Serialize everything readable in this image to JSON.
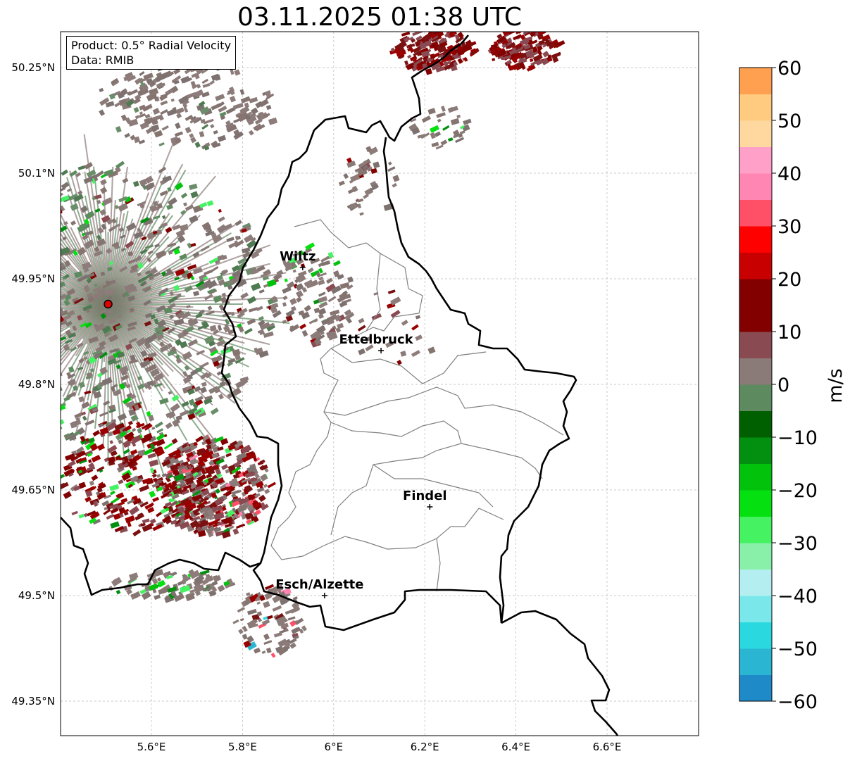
{
  "title": "03.11.2025 01:38 UTC",
  "info": {
    "product": "Product: 0.5° Radial Velocity",
    "data": "Data: RMIB"
  },
  "map": {
    "lon_range": [
      5.4,
      6.8
    ],
    "lat_range": [
      49.3,
      50.3
    ],
    "lon_ticks": [
      {
        "value": 5.6,
        "label": "5.6°E"
      },
      {
        "value": 5.8,
        "label": "5.8°E"
      },
      {
        "value": 6.0,
        "label": "6°E"
      },
      {
        "value": 6.2,
        "label": "6.2°E"
      },
      {
        "value": 6.4,
        "label": "6.4°E"
      },
      {
        "value": 6.6,
        "label": "6.6°E"
      }
    ],
    "lat_ticks": [
      {
        "value": 49.35,
        "label": "49.35°N"
      },
      {
        "value": 49.5,
        "label": "49.5°N"
      },
      {
        "value": 49.65,
        "label": "49.65°N"
      },
      {
        "value": 49.8,
        "label": "49.8°N"
      },
      {
        "value": 49.95,
        "label": "49.95°N"
      },
      {
        "value": 50.1,
        "label": "50.1°N"
      },
      {
        "value": 50.25,
        "label": "50.25°N"
      }
    ],
    "radar_site": {
      "lon": 5.505,
      "lat": 49.914
    },
    "cities": [
      {
        "name": "Wiltz",
        "lon": 5.932,
        "lat": 49.966
      },
      {
        "name": "Ettelbruck",
        "lon": 6.104,
        "lat": 49.848
      },
      {
        "name": "Findel",
        "lon": 6.211,
        "lat": 49.626
      },
      {
        "name": "Esch/Alzette",
        "lon": 5.98,
        "lat": 49.5
      }
    ],
    "grid": true
  },
  "colorbar": {
    "label": "m/s",
    "min": -60,
    "max": 60,
    "ticks": [
      {
        "value": 60,
        "label": "60"
      },
      {
        "value": 50,
        "label": "50"
      },
      {
        "value": 40,
        "label": "40"
      },
      {
        "value": 30,
        "label": "30"
      },
      {
        "value": 20,
        "label": "20"
      },
      {
        "value": 10,
        "label": "10"
      },
      {
        "value": 0,
        "label": "0"
      },
      {
        "value": -10,
        "label": "−10"
      },
      {
        "value": -20,
        "label": "−20"
      },
      {
        "value": -30,
        "label": "−30"
      },
      {
        "value": -40,
        "label": "−40"
      },
      {
        "value": -50,
        "label": "−50"
      },
      {
        "value": -60,
        "label": "−60"
      }
    ],
    "colors": {
      "below_-55": "#1f8ac8",
      "-55_-50": "#2ab6d2",
      "-50_-45": "#2ad9e0",
      "-45_-40": "#7ae8ea",
      "-40_-35": "#b4eef0",
      "-35_-30": "#88f0a8",
      "-30_-25": "#44f262",
      "-25_-20": "#04e010",
      "-20_-15": "#02c20c",
      "-15_-10": "#038f10",
      "-10_-5": "#006000",
      "-5_0": "#5e8a60",
      "0_5": "#8a7a78",
      "5_10": "#8a4a52",
      "10_20": "#820000",
      "20_25": "#c80000",
      "25_30": "#ff0000",
      "30_35": "#ff5068",
      "35_40": "#ff86b2",
      "40_45": "#ffa0c8",
      "45_50": "#ffd8a0",
      "50_55": "#ffcb80",
      "55_60": "#ffa050"
    }
  }
}
